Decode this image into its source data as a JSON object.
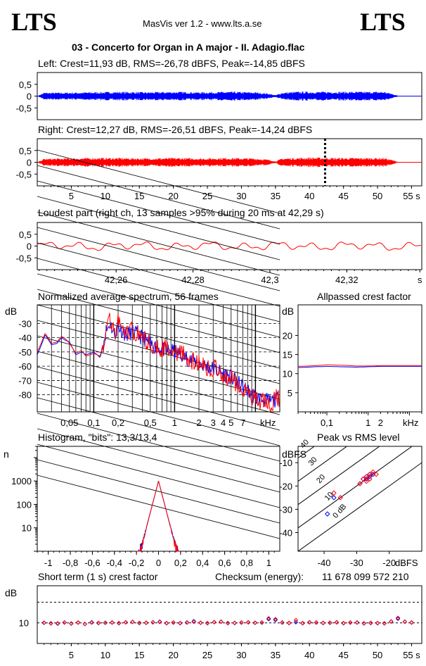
{
  "header": {
    "logo_left": "LTS",
    "logo_right": "LTS",
    "app": "MasVis ver 1.2 - www.lts.a.se",
    "title": "03 - Concerto for Organ in A major - II. Adagio.flac"
  },
  "colors": {
    "left": "#0000ff",
    "right": "#ff0000",
    "grid": "#000000"
  },
  "chart_data": [
    {
      "id": "left_waveform",
      "type": "area",
      "title": "Left: Crest=11,93 dB, RMS=-26,78 dBFS, Peak=-14,85 dBFS",
      "yticks": [
        "0,5",
        "0",
        "-0,5"
      ],
      "ylim": [
        -1,
        1
      ],
      "xlim": [
        0,
        56.5
      ],
      "envelope_x": [
        0,
        1,
        4,
        8,
        12,
        16,
        20,
        24,
        28,
        32,
        34,
        35,
        36,
        38,
        40,
        44,
        48,
        51,
        52,
        53,
        56.5
      ],
      "envelope_amp": [
        0.0,
        0.08,
        0.08,
        0.09,
        0.1,
        0.09,
        0.1,
        0.09,
        0.1,
        0.09,
        0.06,
        0.02,
        0.08,
        0.1,
        0.1,
        0.1,
        0.1,
        0.1,
        0.06,
        0.01,
        0.0
      ]
    },
    {
      "id": "right_waveform",
      "type": "area",
      "title": "Right: Crest=12,27 dB, RMS=-26,51 dBFS, Peak=-14,24 dBFS",
      "yticks": [
        "0,5",
        "0",
        "-0,5"
      ],
      "ylim": [
        -1,
        1
      ],
      "xlim": [
        0,
        56.5
      ],
      "xticks": [
        "5",
        "10",
        "15",
        "20",
        "25",
        "30",
        "35",
        "40",
        "45",
        "50",
        "55 s"
      ],
      "xtick_values": [
        5,
        10,
        15,
        20,
        25,
        30,
        35,
        40,
        45,
        50,
        55
      ],
      "marker_x": 42.29,
      "envelope_x": [
        0,
        1,
        4,
        8,
        12,
        16,
        20,
        24,
        28,
        32,
        34,
        35,
        36,
        38,
        40,
        44,
        48,
        51,
        52,
        53,
        56.5
      ],
      "envelope_amp": [
        0.0,
        0.08,
        0.09,
        0.1,
        0.1,
        0.09,
        0.1,
        0.09,
        0.1,
        0.09,
        0.06,
        0.02,
        0.09,
        0.1,
        0.11,
        0.1,
        0.1,
        0.1,
        0.06,
        0.01,
        0.0
      ]
    },
    {
      "id": "loudest_part",
      "type": "line",
      "title": "Loudest part (right ch, 13 samples >95% during 20 ms at 42,29 s)",
      "yticks": [
        "0,5",
        "0",
        "-0,5"
      ],
      "ylim": [
        -1,
        1
      ],
      "xlim": [
        42.2395,
        42.3395
      ],
      "xticks": [
        "42,26",
        "42,28",
        "42,3",
        "42,32",
        "s"
      ],
      "xtick_values": [
        42.26,
        42.28,
        42.3,
        42.32,
        42.339
      ]
    },
    {
      "id": "spectrum",
      "type": "line",
      "title": "Normalized average spectrum, 56 frames",
      "ylabel": "dB",
      "yticks": [
        "-30",
        "-40",
        "-50",
        "-60",
        "-70",
        "-80"
      ],
      "ytick_values": [
        -30,
        -40,
        -50,
        -60,
        -70,
        -80
      ],
      "ylim": [
        -92,
        -17
      ],
      "xlabel": "kHz",
      "xticks": [
        "0,05",
        "0,1",
        "0,2",
        "0,5",
        "1",
        "2",
        "3",
        "4",
        "5",
        "7"
      ],
      "xtick_values": [
        0.05,
        0.1,
        0.2,
        0.5,
        1,
        2,
        3,
        4,
        5,
        7
      ],
      "xlim": [
        0.02,
        20
      ],
      "series": [
        {
          "name": "left",
          "x": [
            0.02,
            0.025,
            0.03,
            0.035,
            0.04,
            0.045,
            0.05,
            0.06,
            0.07,
            0.08,
            0.1,
            0.12,
            0.14,
            0.16,
            0.18,
            0.2,
            0.25,
            0.3,
            0.4,
            0.5,
            0.7,
            1,
            1.5,
            2,
            3,
            4,
            5,
            7,
            10,
            15,
            20
          ],
          "y": [
            -52,
            -38,
            -45,
            -44,
            -40,
            -42,
            -43,
            -52,
            -50,
            -52,
            -50,
            -54,
            -36,
            -30,
            -38,
            -32,
            -38,
            -36,
            -40,
            -45,
            -48,
            -50,
            -55,
            -58,
            -62,
            -65,
            -68,
            -75,
            -82,
            -85,
            -82
          ]
        },
        {
          "name": "right",
          "x": [
            0.02,
            0.025,
            0.03,
            0.035,
            0.04,
            0.045,
            0.05,
            0.06,
            0.07,
            0.08,
            0.1,
            0.12,
            0.14,
            0.16,
            0.18,
            0.2,
            0.25,
            0.3,
            0.4,
            0.5,
            0.7,
            1,
            1.5,
            2,
            3,
            4,
            5,
            7,
            10,
            15,
            20
          ],
          "y": [
            -50,
            -37,
            -44,
            -43,
            -39,
            -41,
            -44,
            -51,
            -49,
            -53,
            -51,
            -53,
            -35,
            -28,
            -37,
            -30,
            -36,
            -35,
            -41,
            -44,
            -47,
            -51,
            -54,
            -59,
            -61,
            -66,
            -69,
            -74,
            -83,
            -86,
            -81
          ]
        }
      ]
    },
    {
      "id": "allpassed_crest",
      "type": "line",
      "title": "Allpassed crest factor",
      "ylabel": "dB",
      "yticks": [
        "20",
        "15",
        "10",
        "5"
      ],
      "ytick_values": [
        20,
        15,
        10,
        5
      ],
      "ylim": [
        0,
        28
      ],
      "xlabel": "kHz",
      "xticks": [
        "0,1",
        "1",
        "2"
      ],
      "xtick_values": [
        0.1,
        1,
        2
      ],
      "xlim": [
        0.02,
        20
      ],
      "series": [
        {
          "name": "left",
          "x": [
            0.02,
            0.05,
            0.1,
            0.2,
            0.5,
            1,
            2,
            5,
            20
          ],
          "y": [
            11.6,
            11.8,
            11.9,
            11.8,
            11.7,
            11.8,
            11.9,
            11.9,
            11.9
          ]
        },
        {
          "name": "right",
          "x": [
            0.02,
            0.05,
            0.1,
            0.2,
            0.5,
            1,
            2,
            5,
            20
          ],
          "y": [
            11.9,
            12.1,
            12.3,
            12.2,
            12.0,
            12.0,
            12.1,
            12.1,
            12.1
          ]
        }
      ]
    },
    {
      "id": "histogram",
      "type": "line",
      "title": "Histogram, \"bits\": 13,3/13,4",
      "ylabel": "n",
      "yticks": [
        "1000",
        "100",
        "10"
      ],
      "ytick_values": [
        1000,
        100,
        10
      ],
      "ylim": [
        1,
        30000
      ],
      "xticks": [
        "-1",
        "-0,8",
        "-0,6",
        "-0,4",
        "-0,2",
        "0",
        "0,2",
        "0,4",
        "0,6",
        "0,8",
        "1"
      ],
      "xtick_values": [
        -1,
        -0.8,
        -0.6,
        -0.4,
        -0.2,
        0,
        0.2,
        0.4,
        0.6,
        0.8,
        1
      ],
      "xlim": [
        -1.1,
        1.1
      ]
    },
    {
      "id": "peak_vs_rms",
      "type": "scatter",
      "title": "Peak vs RMS level",
      "ylabel": "dBFS",
      "yticks": [
        "-10",
        "-20",
        "-30",
        "-40"
      ],
      "ytick_values": [
        -10,
        -20,
        -30,
        -40
      ],
      "ylim": [
        -48,
        -3
      ],
      "xlabel": "dBFS",
      "xticks": [
        "-40",
        "-30",
        "-20"
      ],
      "xtick_values": [
        -40,
        -30,
        -20
      ],
      "xlim": [
        -48,
        -10
      ],
      "diag_labels": [
        "40",
        "30",
        "20",
        "10",
        "0 dB"
      ],
      "series": [
        {
          "name": "left",
          "x": [
            -27,
            -26,
            -28,
            -25,
            -27,
            -26,
            -29,
            -39,
            -37
          ],
          "y": [
            -16,
            -15,
            -17,
            -15,
            -17,
            -16,
            -19,
            -32,
            -25
          ]
        },
        {
          "name": "right",
          "x": [
            -27,
            -26,
            -28,
            -25,
            -27,
            -26,
            -29,
            -24,
            -37,
            -35
          ],
          "y": [
            -16,
            -15,
            -17,
            -14,
            -18,
            -17,
            -19,
            -15,
            -23,
            -25
          ]
        }
      ]
    },
    {
      "id": "short_term_crest",
      "type": "scatter",
      "title": "Short term (1 s) crest factor",
      "checksum_label": "Checksum (energy):",
      "checksum_value": "11 678 099 572 210",
      "ylabel": "dB",
      "yticks": [
        "10"
      ],
      "ytick_values": [
        10
      ],
      "ylim": [
        0,
        28
      ],
      "xticks": [
        "5",
        "10",
        "15",
        "20",
        "25",
        "30",
        "35",
        "40",
        "45",
        "50",
        "55 s"
      ],
      "xtick_values": [
        5,
        10,
        15,
        20,
        25,
        30,
        35,
        40,
        45,
        50,
        55
      ],
      "xlim": [
        0,
        56.5
      ],
      "series": [
        {
          "name": "left",
          "x": [
            1,
            2,
            3,
            4,
            5,
            6,
            7,
            8,
            9,
            10,
            11,
            12,
            13,
            14,
            15,
            16,
            17,
            18,
            19,
            20,
            21,
            22,
            23,
            24,
            25,
            26,
            27,
            28,
            29,
            30,
            31,
            32,
            33,
            34,
            35,
            36,
            37,
            38,
            39,
            40,
            41,
            42,
            43,
            44,
            45,
            46,
            47,
            48,
            49,
            50,
            51,
            52,
            53,
            54,
            55
          ],
          "y": [
            10,
            9.8,
            9.6,
            10.2,
            9.7,
            10.1,
            9.4,
            10.3,
            9.9,
            10,
            10.2,
            9.8,
            10.3,
            10.4,
            9.9,
            10,
            10.3,
            10.6,
            9.8,
            10.1,
            9.9,
            10.2,
            10.8,
            10,
            9.8,
            10.4,
            10.6,
            9.9,
            9.9,
            10.1,
            10.3,
            10,
            10.1,
            11.8,
            11.4,
            10.2,
            9.9,
            10.3,
            9.8,
            10.3,
            10.1,
            9.9,
            10,
            10.3,
            9.8,
            10.1,
            10.2,
            9.7,
            9.9,
            9.8,
            9.8,
            10.7,
            12,
            10.6,
            10.2
          ]
        },
        {
          "name": "right",
          "x": [
            1,
            2,
            3,
            4,
            5,
            6,
            7,
            8,
            9,
            10,
            11,
            12,
            13,
            14,
            15,
            16,
            17,
            18,
            19,
            20,
            21,
            22,
            23,
            24,
            25,
            26,
            27,
            28,
            29,
            30,
            31,
            32,
            33,
            34,
            35,
            36,
            37,
            38,
            39,
            40,
            41,
            42,
            43,
            44,
            45,
            46,
            47,
            48,
            49,
            50,
            51,
            52,
            53,
            54,
            55
          ],
          "y": [
            10.1,
            9.7,
            9.8,
            10.1,
            9.6,
            10.2,
            9.5,
            10.1,
            10,
            10.1,
            10.1,
            9.9,
            10.2,
            10.5,
            10,
            10.1,
            10.2,
            10.4,
            9.9,
            10.2,
            9.8,
            10.1,
            10.5,
            10.1,
            9.9,
            10.3,
            10.5,
            9.8,
            10,
            10.2,
            10.2,
            10.1,
            10.2,
            12.2,
            11.8,
            10.1,
            10,
            11.3,
            9.9,
            10.2,
            10.2,
            10,
            10.1,
            10.2,
            9.9,
            10.2,
            10.1,
            9.8,
            10,
            9.9,
            9.7,
            10.6,
            12.4,
            10.5,
            10.1
          ]
        }
      ]
    }
  ]
}
